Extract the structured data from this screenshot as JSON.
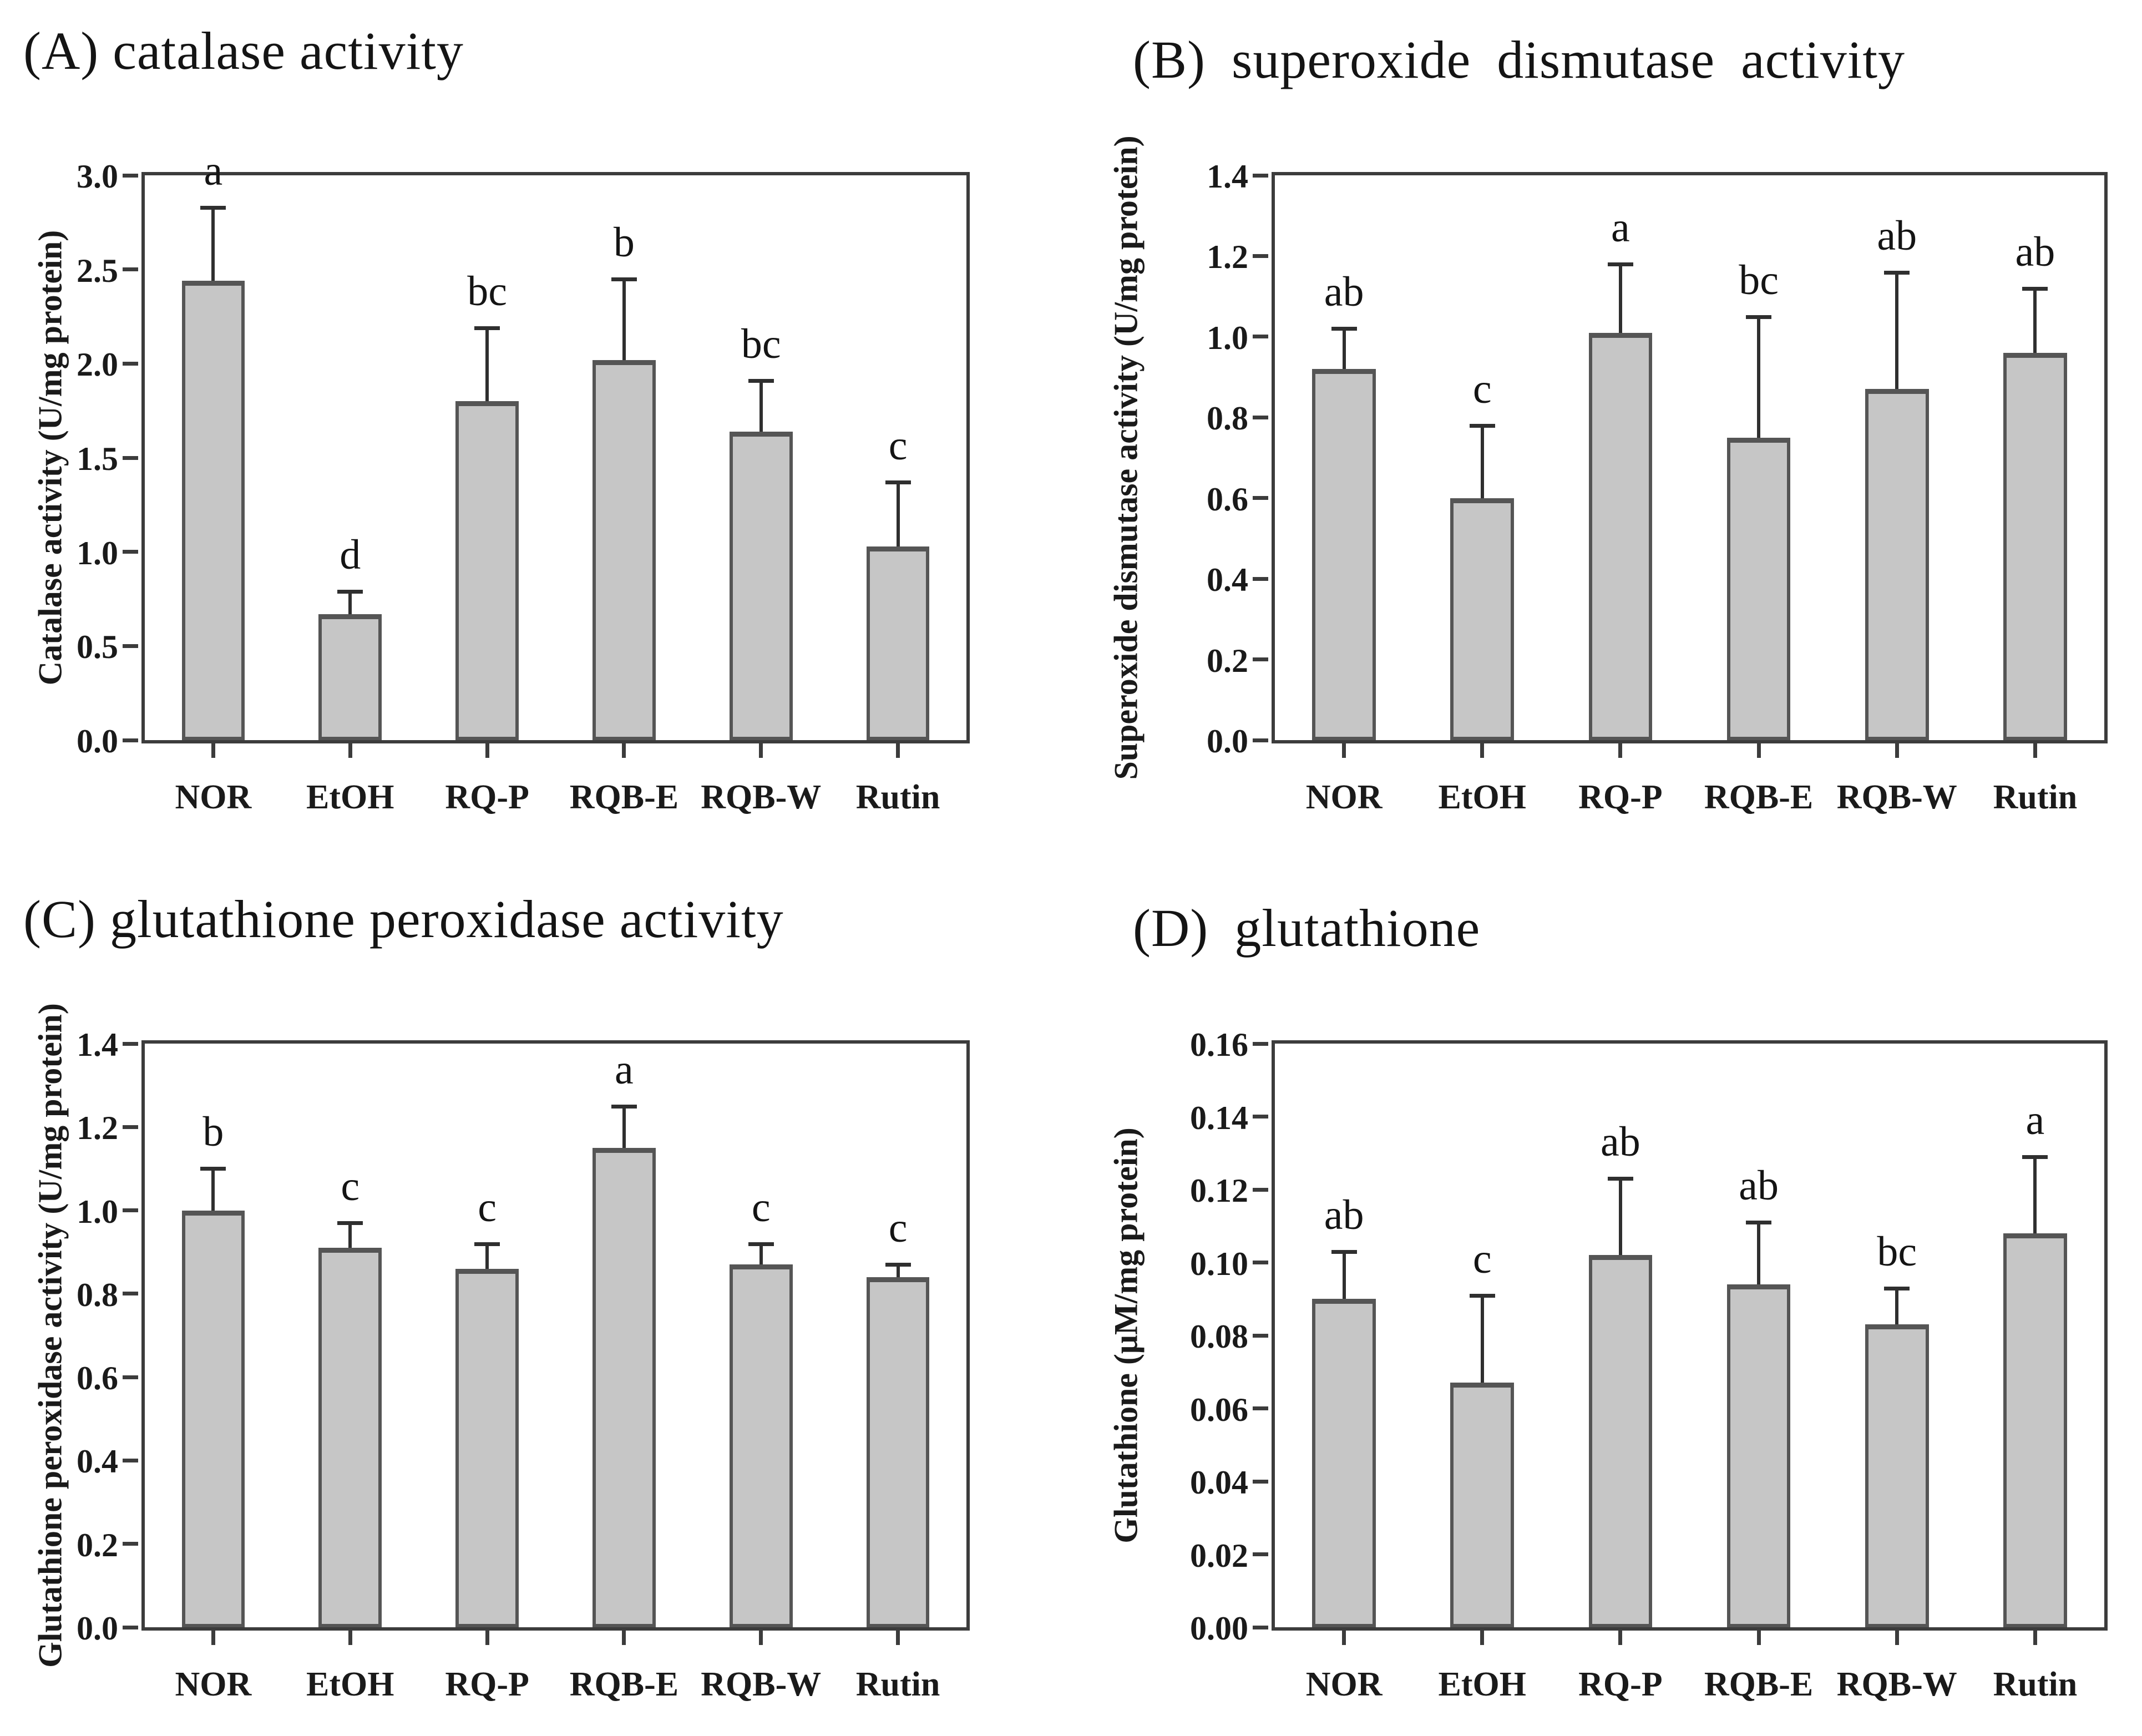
{
  "figure": {
    "background": "#ffffff",
    "description_visible_panels": [
      "A",
      "B",
      "C",
      "D"
    ]
  },
  "colors": {
    "bar_fill": "#c6c6c6",
    "bar_border": "#555555",
    "axis": "#3c3c3c",
    "error_bar": "#2f2f2f",
    "text": "#141414"
  },
  "chart_data": [
    {
      "id": "A",
      "type": "bar",
      "title": "(A) catalase activity",
      "ylabel": "Catalase activity (U/mg protein)",
      "xlabel": "",
      "categories": [
        "NOR",
        "EtOH",
        "RQ-P",
        "RQB-E",
        "RQB-W",
        "Rutin"
      ],
      "values": [
        2.44,
        0.67,
        1.8,
        2.02,
        1.64,
        1.03
      ],
      "error_tops": [
        2.83,
        0.79,
        2.19,
        2.45,
        1.91,
        1.37
      ],
      "sig_letters": [
        "a",
        "d",
        "bc",
        "b",
        "bc",
        "c"
      ],
      "ylim": [
        0,
        3.0
      ],
      "ytick_step": 0.5,
      "ytick_decimals": 1,
      "grid": false,
      "legend": null
    },
    {
      "id": "B",
      "type": "bar",
      "title": "(B) superoxide dismutase activity",
      "ylabel": "Superoxide dismutase activity (U/mg protein)",
      "xlabel": "",
      "categories": [
        "NOR",
        "EtOH",
        "RQ-P",
        "RQB-E",
        "RQB-W",
        "Rutin"
      ],
      "values": [
        0.92,
        0.6,
        1.01,
        0.75,
        0.87,
        0.96
      ],
      "error_tops": [
        1.02,
        0.78,
        1.18,
        1.05,
        1.16,
        1.12
      ],
      "sig_letters": [
        "ab",
        "c",
        "a",
        "bc",
        "ab",
        "ab"
      ],
      "ylim": [
        0,
        1.4
      ],
      "ytick_step": 0.2,
      "ytick_decimals": 1,
      "grid": false,
      "legend": null
    },
    {
      "id": "C",
      "type": "bar",
      "title": "(C) glutathione peroxidase activity",
      "ylabel": "Glutathione peroxidase activity (U/mg protein)",
      "xlabel": "",
      "categories": [
        "NOR",
        "EtOH",
        "RQ-P",
        "RQB-E",
        "RQB-W",
        "Rutin"
      ],
      "values": [
        1.0,
        0.91,
        0.86,
        1.15,
        0.87,
        0.84
      ],
      "error_tops": [
        1.1,
        0.97,
        0.92,
        1.25,
        0.92,
        0.87
      ],
      "sig_letters": [
        "b",
        "c",
        "c",
        "a",
        "c",
        "c"
      ],
      "ylim": [
        0,
        1.4
      ],
      "ytick_step": 0.2,
      "ytick_decimals": 1,
      "grid": false,
      "legend": null
    },
    {
      "id": "D",
      "type": "bar",
      "title": "(D) glutathione",
      "ylabel": "Glutathione (μM/mg protein)",
      "xlabel": "",
      "categories": [
        "NOR",
        "EtOH",
        "RQ-P",
        "RQB-E",
        "RQB-W",
        "Rutin"
      ],
      "values": [
        0.09,
        0.067,
        0.102,
        0.094,
        0.083,
        0.108
      ],
      "error_tops": [
        0.103,
        0.091,
        0.123,
        0.111,
        0.093,
        0.129
      ],
      "sig_letters": [
        "ab",
        "c",
        "ab",
        "ab",
        "bc",
        "a"
      ],
      "ylim": [
        0,
        0.16
      ],
      "ytick_step": 0.02,
      "ytick_decimals": 2,
      "grid": false,
      "legend": null
    }
  ]
}
